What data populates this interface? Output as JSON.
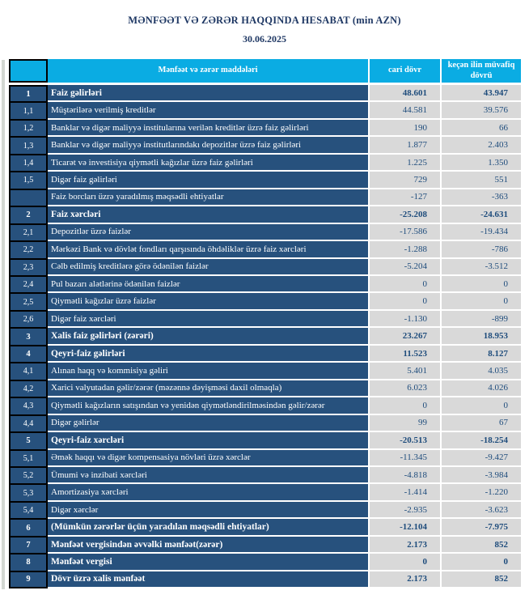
{
  "report": {
    "title": "MƏNFƏƏT VƏ ZƏRƏR HAQQINDA HESABAT (min AZN)",
    "date": "30.06.2025"
  },
  "colors": {
    "header_bg": "#0AACE3",
    "row_bg": "#27517D",
    "value_bg": "#D9D9D9",
    "value_text": "#1E4C7C",
    "title_text": "#1F3864"
  },
  "table": {
    "headers": {
      "num": "",
      "items": "Mənfəət və zərər maddələri",
      "current": "cari dövr",
      "previous": "keçən ilin müvafiq dövrü"
    },
    "rows": [
      {
        "no": "1",
        "label": "Faiz  gəlirləri",
        "current": "48.601",
        "previous": "43.947",
        "bold": true
      },
      {
        "no": "1,1",
        "label": "Müştərilərə verilmiş kreditlər",
        "current": "44.581",
        "previous": "39.576",
        "bold": false
      },
      {
        "no": "1,2",
        "label": "Banklar və digər maliyyə institularına verilən kreditlər üzrə faiz gəlirləri",
        "current": "190",
        "previous": "66",
        "bold": false
      },
      {
        "no": "1,3",
        "label": "Banklar və digər maliyyə institutlarındakı depozitlər üzrə faiz gəlirləri",
        "current": "1.877",
        "previous": "2.403",
        "bold": false
      },
      {
        "no": "1,4",
        "label": "Ticarət və investisiya qiymətli kağızlar üzrə faiz gəlirləri",
        "current": "1.225",
        "previous": "1.350",
        "bold": false
      },
      {
        "no": "1,5",
        "label": "Digər faiz gəlirləri",
        "current": "729",
        "previous": "551",
        "bold": false
      },
      {
        "no": "",
        "label": "Faiz borcları üzrə yaradılmış məqsədli ehtiyatlar",
        "current": "-127",
        "previous": "-363",
        "bold": false
      },
      {
        "no": "2",
        "label": "Faiz xərcləri",
        "current": "-25.208",
        "previous": "-24.631",
        "bold": true
      },
      {
        "no": "2,1",
        "label": "Depozitlər üzrə faizlər",
        "current": "-17.586",
        "previous": "-19.434",
        "bold": false
      },
      {
        "no": "2,2",
        "label": "Mərkəzi Bank və dövlət fondları qarşısında öhdəliklər üzrə faiz xərcləri",
        "current": "-1.288",
        "previous": "-786",
        "bold": false
      },
      {
        "no": "2,3",
        "label": "Cəlb edilmiş kreditlərə görə ödənilən faizlər",
        "current": "-5.204",
        "previous": "-3.512",
        "bold": false
      },
      {
        "no": "2,4",
        "label": "Pul bazarı alətlərinə ödənilən faizlər",
        "current": "0",
        "previous": "0",
        "bold": false
      },
      {
        "no": "2,5",
        "label": "Qiymətli kağızlar üzrə faizlər",
        "current": "0",
        "previous": "0",
        "bold": false
      },
      {
        "no": "2,6",
        "label": "Digər faiz xərcləri",
        "current": "-1.130",
        "previous": "-899",
        "bold": false
      },
      {
        "no": "3",
        "label": "Xalis faiz gəlirləri (zərəri)",
        "current": "23.267",
        "previous": "18.953",
        "bold": true
      },
      {
        "no": "4",
        "label": "Qeyri-faiz gəlirləri",
        "current": "11.523",
        "previous": "8.127",
        "bold": true
      },
      {
        "no": "4,1",
        "label": "Alınan haqq və kommisiya gəliri",
        "current": "5.401",
        "previous": "4.035",
        "bold": false
      },
      {
        "no": "4,2",
        "label": "Xarici valyutadan gəlir/zərər (məzənnə dəyişməsi daxil olmaqla)",
        "current": "6.023",
        "previous": "4.026",
        "bold": false
      },
      {
        "no": "4,3",
        "label": "Qiymətli kağızların satışından və yenidən qiymətləndirilməsindən gəlir/zərər",
        "current": "0",
        "previous": "0",
        "bold": false
      },
      {
        "no": "4,4",
        "label": "Digər gəlirlər",
        "current": "99",
        "previous": "67",
        "bold": false
      },
      {
        "no": "5",
        "label": "Qeyri-faiz xərcləri",
        "current": "-20.513",
        "previous": "-18.254",
        "bold": true
      },
      {
        "no": "5,1",
        "label": "Əmək haqqı və digər kompensasiya növləri üzrə xərclər",
        "current": "-11.345",
        "previous": "-9.427",
        "bold": false
      },
      {
        "no": "5,2",
        "label": "Ümumi və inzibati xərcləri",
        "current": "-4.818",
        "previous": "-3.984",
        "bold": false
      },
      {
        "no": "5,3",
        "label": "Amortizasiya xərcləri",
        "current": "-1.414",
        "previous": "-1.220",
        "bold": false
      },
      {
        "no": "5,4",
        "label": "Digər xərclər",
        "current": "-2.935",
        "previous": "-3.623",
        "bold": false
      },
      {
        "no": "6",
        "label": "(Mümkün zərərlər üçün yaradılan məqsədli ehtiyatlar)",
        "current": "-12.104",
        "previous": "-7.975",
        "bold": true
      },
      {
        "no": "7",
        "label": "Mənfəət vergisindən əvvəlki mənfəət(zərər)",
        "current": "2.173",
        "previous": "852",
        "bold": true
      },
      {
        "no": "8",
        "label": "Mənfəət vergisi",
        "current": "0",
        "previous": "0",
        "bold": true
      },
      {
        "no": "9",
        "label": "Dövr üzrə xalis mənfəət",
        "current": "2.173",
        "previous": "852",
        "bold": true
      }
    ]
  }
}
